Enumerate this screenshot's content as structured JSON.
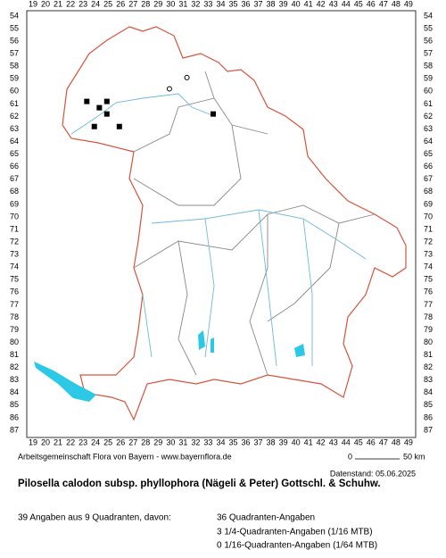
{
  "map": {
    "x_labels": [
      19,
      20,
      21,
      22,
      23,
      24,
      25,
      26,
      27,
      28,
      29,
      30,
      31,
      32,
      33,
      34,
      35,
      36,
      37,
      38,
      39,
      40,
      41,
      42,
      43,
      44,
      45,
      46,
      47,
      48,
      49
    ],
    "y_labels": [
      54,
      55,
      56,
      57,
      58,
      59,
      60,
      61,
      62,
      63,
      64,
      65,
      66,
      67,
      68,
      69,
      70,
      71,
      72,
      73,
      74,
      75,
      76,
      77,
      78,
      79,
      80,
      81,
      82,
      83,
      84,
      85,
      86,
      87
    ],
    "points": [
      {
        "x": 23.3,
        "y": 60.8,
        "symbol": "square"
      },
      {
        "x": 24.3,
        "y": 61.3,
        "symbol": "square"
      },
      {
        "x": 24.9,
        "y": 60.8,
        "symbol": "square"
      },
      {
        "x": 24.9,
        "y": 61.8,
        "symbol": "square"
      },
      {
        "x": 23.9,
        "y": 62.8,
        "symbol": "square"
      },
      {
        "x": 25.9,
        "y": 62.8,
        "symbol": "square"
      },
      {
        "x": 33.4,
        "y": 61.8,
        "symbol": "square"
      },
      {
        "x": 29.9,
        "y": 59.8,
        "symbol": "circle"
      },
      {
        "x": 31.3,
        "y": 58.9,
        "symbol": "circle"
      }
    ]
  },
  "footer": {
    "credit": "Arbeitsgemeinschaft Flora von Bayern - www.bayernflora.de",
    "scale_start": "0",
    "scale_end": "50 km",
    "date": "Datenstand: 05.06.2025",
    "title": "Pilosella calodon subsp. phyllophora (Nägeli & Peter) Gottschl. & Schuhw.",
    "summary": "39 Angaben aus 9 Quadranten, davon:",
    "counts": [
      "36 Quadranten-Angaben",
      "3 1/4-Quadranten-Angaben (1/16 MTB)",
      "0 1/16-Quadranten-Angaben (1/64 MTB)"
    ]
  }
}
